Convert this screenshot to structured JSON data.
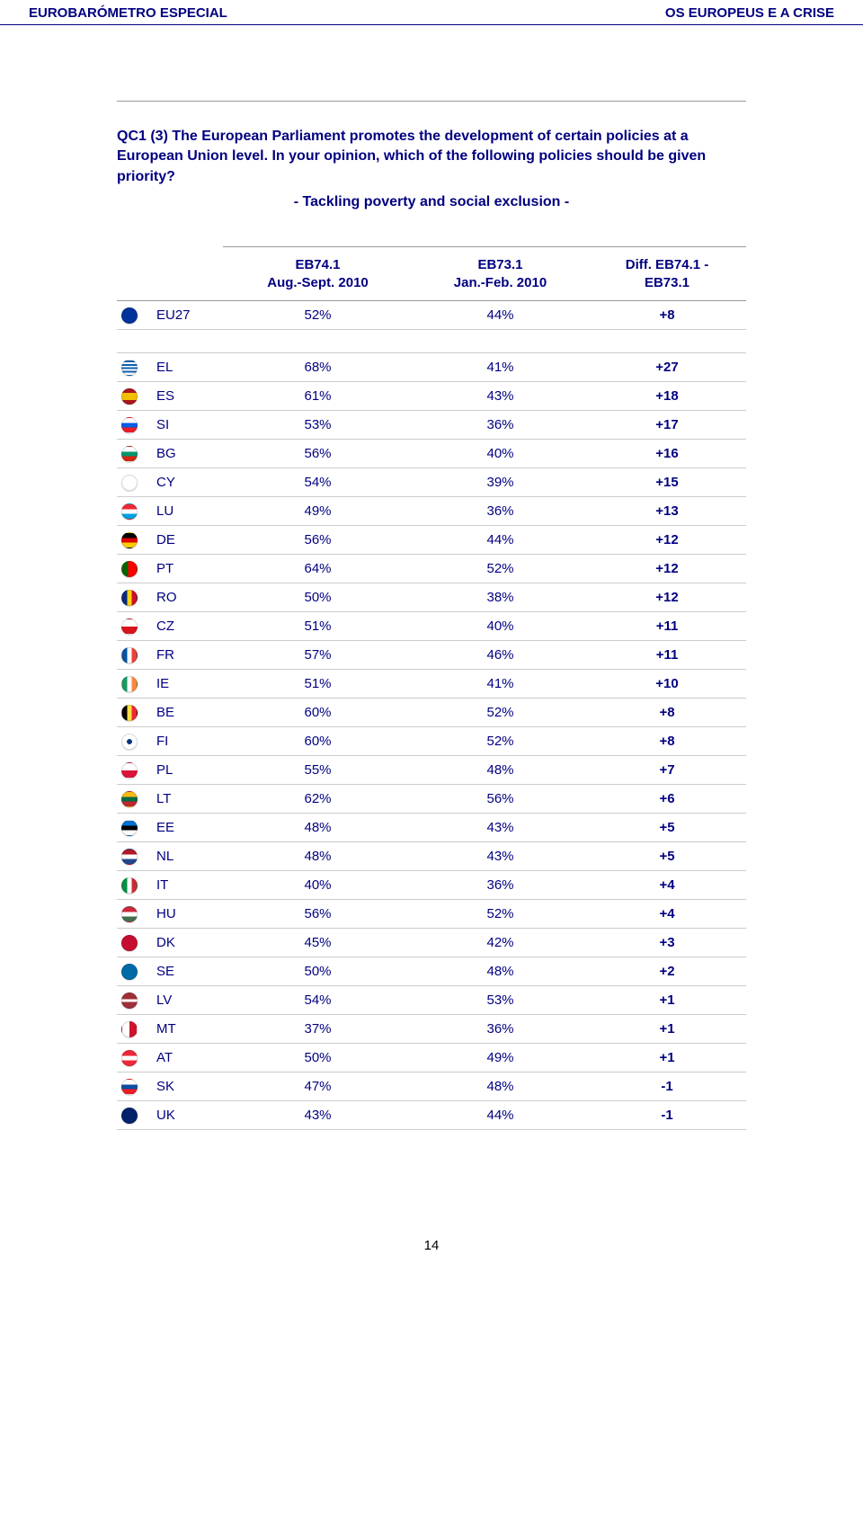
{
  "header": {
    "left": "EUROBARÓMETRO ESPECIAL",
    "right": "OS EUROPEUS E A CRISE"
  },
  "question": "QC1 (3) The European Parliament promotes the development of certain policies at a European Union level. In your opinion, which of the following policies should be given priority?",
  "subtitle": "- Tackling poverty and social exclusion -",
  "columns": {
    "c1": {
      "line1": "EB74.1",
      "line2": "Aug.-Sept. 2010"
    },
    "c2": {
      "line1": "EB73.1",
      "line2": "Jan.-Feb. 2010"
    },
    "c3": {
      "line1": "Diff. EB74.1 -",
      "line2": "EB73.1"
    }
  },
  "eu_row": {
    "code": "EU27",
    "v1": "52%",
    "v2": "44%",
    "diff": "+8",
    "flag": {
      "bg": "#003399"
    }
  },
  "rows": [
    {
      "code": "EL",
      "v1": "68%",
      "v2": "41%",
      "diff": "+27",
      "flag": {
        "bg": "linear-gradient(#0d5eaf 12%,#fff 12% 24%,#0d5eaf 24% 36%,#fff 36% 48%,#0d5eaf 48% 60%,#fff 60% 72%,#0d5eaf 72% 84%,#fff 84%)"
      }
    },
    {
      "code": "ES",
      "v1": "61%",
      "v2": "43%",
      "diff": "+18",
      "flag": {
        "bg": "linear-gradient(#aa151b 25%,#f1bf00 25% 75%,#aa151b 75%)"
      }
    },
    {
      "code": "SI",
      "v1": "53%",
      "v2": "36%",
      "diff": "+17",
      "flag": {
        "bg": "linear-gradient(#fff 33%,#005ce5 33% 66%,#ed1c24 66%)"
      }
    },
    {
      "code": "BG",
      "v1": "56%",
      "v2": "40%",
      "diff": "+16",
      "flag": {
        "bg": "linear-gradient(#fff 33%,#00966e 33% 66%,#d62612 66%)"
      }
    },
    {
      "code": "CY",
      "v1": "54%",
      "v2": "39%",
      "diff": "+15",
      "flag": {
        "bg": "#ffffff"
      }
    },
    {
      "code": "LU",
      "v1": "49%",
      "v2": "36%",
      "diff": "+13",
      "flag": {
        "bg": "linear-gradient(#ed2939 33%,#fff 33% 66%,#00a1de 66%)"
      }
    },
    {
      "code": "DE",
      "v1": "56%",
      "v2": "44%",
      "diff": "+12",
      "flag": {
        "bg": "linear-gradient(#000 33%,#dd0000 33% 66%,#ffce00 66%)"
      }
    },
    {
      "code": "PT",
      "v1": "64%",
      "v2": "52%",
      "diff": "+12",
      "flag": {
        "bg": "linear-gradient(90deg,#006600 40%,#ff0000 40%)"
      }
    },
    {
      "code": "RO",
      "v1": "50%",
      "v2": "38%",
      "diff": "+12",
      "flag": {
        "bg": "linear-gradient(90deg,#002b7f 33%,#fcd116 33% 66%,#ce1126 66%)"
      }
    },
    {
      "code": "CZ",
      "v1": "51%",
      "v2": "40%",
      "diff": "+11",
      "flag": {
        "bg": "linear-gradient(#fff 50%,#d7141a 50%)"
      }
    },
    {
      "code": "FR",
      "v1": "57%",
      "v2": "46%",
      "diff": "+11",
      "flag": {
        "bg": "linear-gradient(90deg,#0055a4 33%,#fff 33% 66%,#ef4135 66%)"
      }
    },
    {
      "code": "IE",
      "v1": "51%",
      "v2": "41%",
      "diff": "+10",
      "flag": {
        "bg": "linear-gradient(90deg,#169b62 33%,#fff 33% 66%,#ff883e 66%)"
      }
    },
    {
      "code": "BE",
      "v1": "60%",
      "v2": "52%",
      "diff": "+8",
      "flag": {
        "bg": "linear-gradient(90deg,#000 33%,#fae042 33% 66%,#ed2939 66%)"
      }
    },
    {
      "code": "FI",
      "v1": "60%",
      "v2": "52%",
      "diff": "+8",
      "flag": {
        "bg": "radial-gradient(circle,#003580 25%,#fff 26%)"
      }
    },
    {
      "code": "PL",
      "v1": "55%",
      "v2": "48%",
      "diff": "+7",
      "flag": {
        "bg": "linear-gradient(#fff 50%,#dc143c 50%)"
      }
    },
    {
      "code": "LT",
      "v1": "62%",
      "v2": "56%",
      "diff": "+6",
      "flag": {
        "bg": "linear-gradient(#fdb913 33%,#006a44 33% 66%,#c1272d 66%)"
      }
    },
    {
      "code": "EE",
      "v1": "48%",
      "v2": "43%",
      "diff": "+5",
      "flag": {
        "bg": "linear-gradient(#0072ce 33%,#000 33% 66%,#fff 66%)"
      }
    },
    {
      "code": "NL",
      "v1": "48%",
      "v2": "43%",
      "diff": "+5",
      "flag": {
        "bg": "linear-gradient(#ae1c28 33%,#fff 33% 66%,#21468b 66%)"
      }
    },
    {
      "code": "IT",
      "v1": "40%",
      "v2": "36%",
      "diff": "+4",
      "flag": {
        "bg": "linear-gradient(90deg,#009246 33%,#fff 33% 66%,#ce2b37 66%)"
      }
    },
    {
      "code": "HU",
      "v1": "56%",
      "v2": "52%",
      "diff": "+4",
      "flag": {
        "bg": "linear-gradient(#cd2a3e 33%,#fff 33% 66%,#436f4d 66%)"
      }
    },
    {
      "code": "DK",
      "v1": "45%",
      "v2": "42%",
      "diff": "+3",
      "flag": {
        "bg": "#c60c30"
      }
    },
    {
      "code": "SE",
      "v1": "50%",
      "v2": "48%",
      "diff": "+2",
      "flag": {
        "bg": "#006aa7"
      }
    },
    {
      "code": "LV",
      "v1": "54%",
      "v2": "53%",
      "diff": "+1",
      "flag": {
        "bg": "linear-gradient(#9e3039 40%,#fff 40% 60%,#9e3039 60%)"
      }
    },
    {
      "code": "MT",
      "v1": "37%",
      "v2": "36%",
      "diff": "+1",
      "flag": {
        "bg": "linear-gradient(90deg,#fff 50%,#cf142b 50%)"
      }
    },
    {
      "code": "AT",
      "v1": "50%",
      "v2": "49%",
      "diff": "+1",
      "flag": {
        "bg": "linear-gradient(#ed2939 33%,#fff 33% 66%,#ed2939 66%)"
      }
    },
    {
      "code": "SK",
      "v1": "47%",
      "v2": "48%",
      "diff": "-1",
      "flag": {
        "bg": "linear-gradient(#fff 33%,#0b4ea2 33% 66%,#ee1c25 66%)"
      }
    },
    {
      "code": "UK",
      "v1": "43%",
      "v2": "44%",
      "diff": "-1",
      "flag": {
        "bg": "#012169"
      }
    }
  ],
  "page_number": "14"
}
